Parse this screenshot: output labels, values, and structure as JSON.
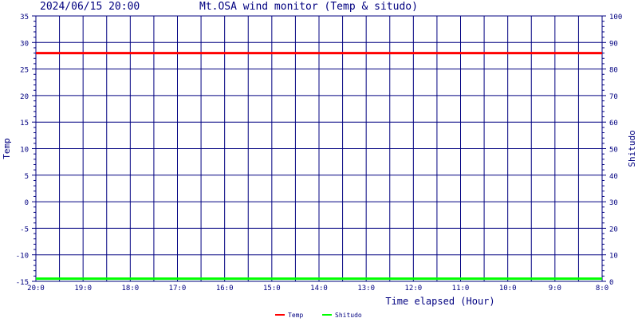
{
  "header": {
    "timestamp": "2024/06/15 20:00",
    "title": "Mt.OSA wind monitor (Temp & situdo)"
  },
  "chart_data": {
    "type": "line",
    "title": "Mt.OSA wind monitor (Temp & situdo)",
    "timestamp": "2024/06/15 20:00",
    "xlabel": "Time elapsed (Hour)",
    "ylabel_left": "Temp",
    "ylabel_right": "Shitudo",
    "ylim_left": [
      -15,
      35
    ],
    "ylim_right": [
      0,
      100
    ],
    "left_ticks": [
      "35",
      "30",
      "25",
      "20",
      "15",
      "10",
      "5",
      "0",
      "-5",
      "-10",
      "-15"
    ],
    "right_ticks": [
      "100",
      "90",
      "80",
      "70",
      "60",
      "50",
      "40",
      "30",
      "20",
      "10",
      "0"
    ],
    "x_ticks": [
      "20:0",
      "19:0",
      "18:0",
      "17:0",
      "16:0",
      "15:0",
      "14:0",
      "13:0",
      "12:0",
      "11:0",
      "10:0",
      "9:0",
      "8:0"
    ],
    "grid": true,
    "legend_position": "bottom-center",
    "series": [
      {
        "name": "Temp",
        "axis": "left",
        "color": "#ff0000",
        "from": "20:0",
        "to": "8:0",
        "value": 28
      },
      {
        "name": "Shitudo",
        "axis": "right",
        "color": "#00ff00",
        "from": "20:0",
        "to": "8:0",
        "value": 1
      }
    ],
    "colors": {
      "grid": "#000080",
      "axis_text": "#000080",
      "background": "#ffffff"
    }
  }
}
